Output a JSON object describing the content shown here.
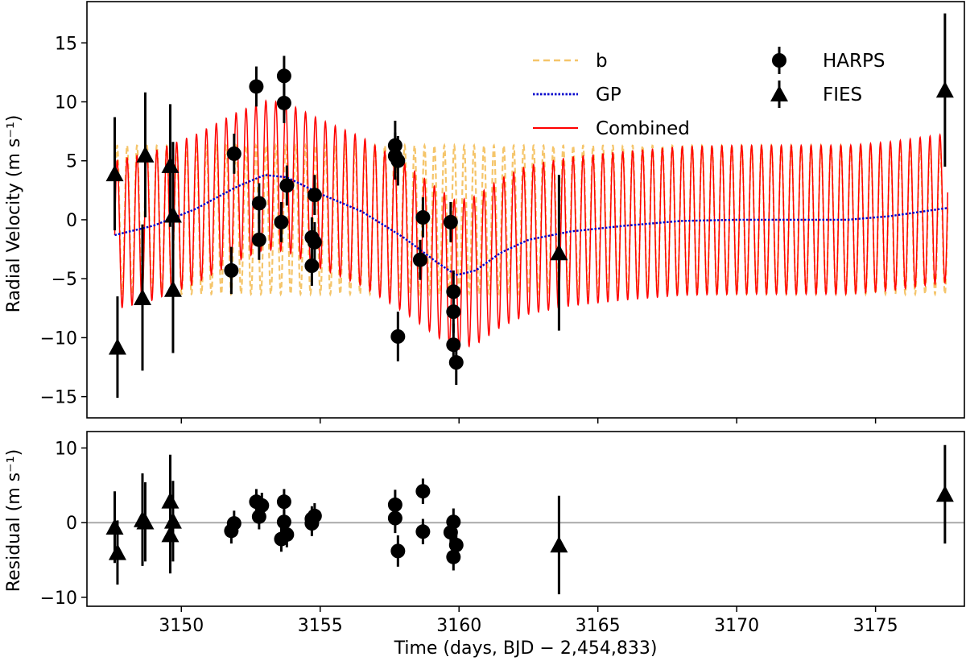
{
  "chart_data": [
    {
      "type": "line",
      "panel": "top",
      "xlabel": "",
      "ylabel": "Radial Velocity (m s⁻¹)",
      "xlim": [
        3146.6,
        3178.2
      ],
      "ylim": [
        -16.8,
        18.5
      ],
      "xticks": [
        3150,
        3155,
        3160,
        3165,
        3170,
        3175
      ],
      "yticks": [
        -15,
        -10,
        -5,
        0,
        5,
        10,
        15
      ],
      "ytick_labels": [
        "−15",
        "−10",
        "−5",
        "0",
        "5",
        "10",
        "15"
      ],
      "grid": false,
      "colors": {
        "b": "#f5c56a",
        "GP": "#0000cc",
        "Combined": "#ff0000",
        "points": "#000000"
      },
      "model": {
        "period_days": 0.357,
        "b_amplitude": 6.3,
        "x_start": 3147.6,
        "x_end": 3177.6,
        "gp_curve": {
          "x": [
            3147.6,
            3149.0,
            3150.5,
            3152.0,
            3153.0,
            3153.8,
            3155.0,
            3156.5,
            3158.0,
            3159.2,
            3159.9,
            3160.6,
            3161.5,
            3162.5,
            3164.0,
            3166.0,
            3168.0,
            3170.0,
            3172.0,
            3174.0,
            3175.5,
            3177.0,
            3177.6
          ],
          "y": [
            -1.3,
            -0.5,
            0.9,
            2.8,
            3.8,
            3.6,
            2.2,
            0.7,
            -1.5,
            -3.6,
            -4.7,
            -4.3,
            -2.8,
            -1.7,
            -1.0,
            -0.5,
            -0.1,
            0.0,
            0.0,
            0.0,
            0.3,
            0.8,
            1.0
          ]
        }
      },
      "series": [
        {
          "name": "HARPS",
          "marker": "circle",
          "points": [
            [
              3151.8,
              -4.3,
              2.0
            ],
            [
              3151.9,
              5.6,
              1.7
            ],
            [
              3152.7,
              11.3,
              1.7
            ],
            [
              3152.8,
              1.4,
              1.7
            ],
            [
              3152.8,
              -1.7,
              1.7
            ],
            [
              3153.7,
              12.2,
              1.7
            ],
            [
              3153.7,
              9.9,
              1.7
            ],
            [
              3153.8,
              2.9,
              1.7
            ],
            [
              3153.6,
              -0.2,
              1.7
            ],
            [
              3154.7,
              -1.5,
              1.7
            ],
            [
              3154.8,
              -1.9,
              1.7
            ],
            [
              3154.7,
              -3.9,
              1.7
            ],
            [
              3154.8,
              2.1,
              1.7
            ],
            [
              3157.7,
              6.3,
              2.1
            ],
            [
              3157.7,
              5.4,
              2.0
            ],
            [
              3157.8,
              5.0,
              2.1
            ],
            [
              3157.8,
              -9.9,
              2.1
            ],
            [
              3158.7,
              0.2,
              1.7
            ],
            [
              3158.6,
              -3.4,
              1.7
            ],
            [
              3159.7,
              -0.2,
              1.7
            ],
            [
              3159.8,
              -6.1,
              1.8
            ],
            [
              3159.8,
              -7.8,
              1.8
            ],
            [
              3159.8,
              -10.6,
              1.8
            ],
            [
              3159.9,
              -12.1,
              1.9
            ]
          ]
        },
        {
          "name": "FIES",
          "marker": "triangle",
          "points": [
            [
              3147.6,
              3.9,
              4.8
            ],
            [
              3147.7,
              -10.8,
              4.3
            ],
            [
              3148.6,
              -6.6,
              6.2
            ],
            [
              3148.7,
              5.5,
              5.3
            ],
            [
              3149.6,
              4.6,
              5.2
            ],
            [
              3149.7,
              0.4,
              6.2
            ],
            [
              3149.7,
              -5.9,
              5.4
            ],
            [
              3163.6,
              -2.8,
              6.6
            ],
            [
              3177.5,
              11.0,
              6.5
            ]
          ]
        }
      ],
      "legend": {
        "placement": "upper-center",
        "entries": [
          {
            "label": "b",
            "style": "dashed",
            "color": "#f5c56a"
          },
          {
            "label": "GP",
            "style": "dotted",
            "color": "#0000cc"
          },
          {
            "label": "Combined",
            "style": "solid",
            "color": "#ff0000"
          },
          {
            "label": "HARPS",
            "style": "circle-marker",
            "color": "#000000"
          },
          {
            "label": "FIES",
            "style": "triangle-marker",
            "color": "#000000"
          }
        ]
      }
    },
    {
      "type": "scatter",
      "panel": "bottom",
      "xlabel": "Time (days, BJD − 2,454,833)",
      "ylabel": "Residual (m s⁻¹)",
      "xlim": [
        3146.6,
        3178.2
      ],
      "ylim": [
        -11.2,
        12.2
      ],
      "xticks": [
        3150,
        3155,
        3160,
        3165,
        3170,
        3175
      ],
      "xtick_labels": [
        "3150",
        "3155",
        "3160",
        "3165",
        "3170",
        "3175"
      ],
      "yticks": [
        -10,
        0,
        10
      ],
      "ytick_labels": [
        "−10",
        "0",
        "10"
      ],
      "grid": false,
      "reference_line": {
        "y": 0,
        "color": "#b3b3b3"
      },
      "series": [
        {
          "name": "HARPS",
          "marker": "circle",
          "points": [
            [
              3151.8,
              -1.1,
              1.7
            ],
            [
              3151.9,
              -0.1,
              1.7
            ],
            [
              3152.7,
              2.8,
              1.7
            ],
            [
              3152.8,
              0.8,
              1.7
            ],
            [
              3152.9,
              2.3,
              1.7
            ],
            [
              3153.6,
              -2.2,
              1.7
            ],
            [
              3153.7,
              2.8,
              1.7
            ],
            [
              3153.7,
              0.1,
              1.7
            ],
            [
              3153.8,
              -1.6,
              1.7
            ],
            [
              3154.7,
              0.5,
              1.7
            ],
            [
              3154.8,
              0.9,
              1.7
            ],
            [
              3154.7,
              -0.1,
              1.7
            ],
            [
              3157.7,
              2.4,
              2.0
            ],
            [
              3157.7,
              0.6,
              2.0
            ],
            [
              3157.8,
              -3.8,
              2.1
            ],
            [
              3158.7,
              4.2,
              1.7
            ],
            [
              3158.7,
              -1.2,
              1.7
            ],
            [
              3159.7,
              -1.3,
              1.8
            ],
            [
              3159.8,
              0.1,
              1.8
            ],
            [
              3159.8,
              -4.6,
              1.8
            ],
            [
              3159.9,
              -3.0,
              1.8
            ]
          ]
        },
        {
          "name": "FIES",
          "marker": "triangle",
          "points": [
            [
              3147.6,
              -0.6,
              4.8
            ],
            [
              3147.7,
              -4.0,
              4.3
            ],
            [
              3148.6,
              0.4,
              6.2
            ],
            [
              3148.7,
              0.1,
              5.3
            ],
            [
              3149.6,
              -1.6,
              5.2
            ],
            [
              3149.6,
              2.9,
              6.2
            ],
            [
              3149.7,
              0.2,
              5.4
            ],
            [
              3163.6,
              -3.0,
              6.6
            ],
            [
              3177.5,
              3.8,
              6.6
            ]
          ]
        }
      ]
    }
  ]
}
